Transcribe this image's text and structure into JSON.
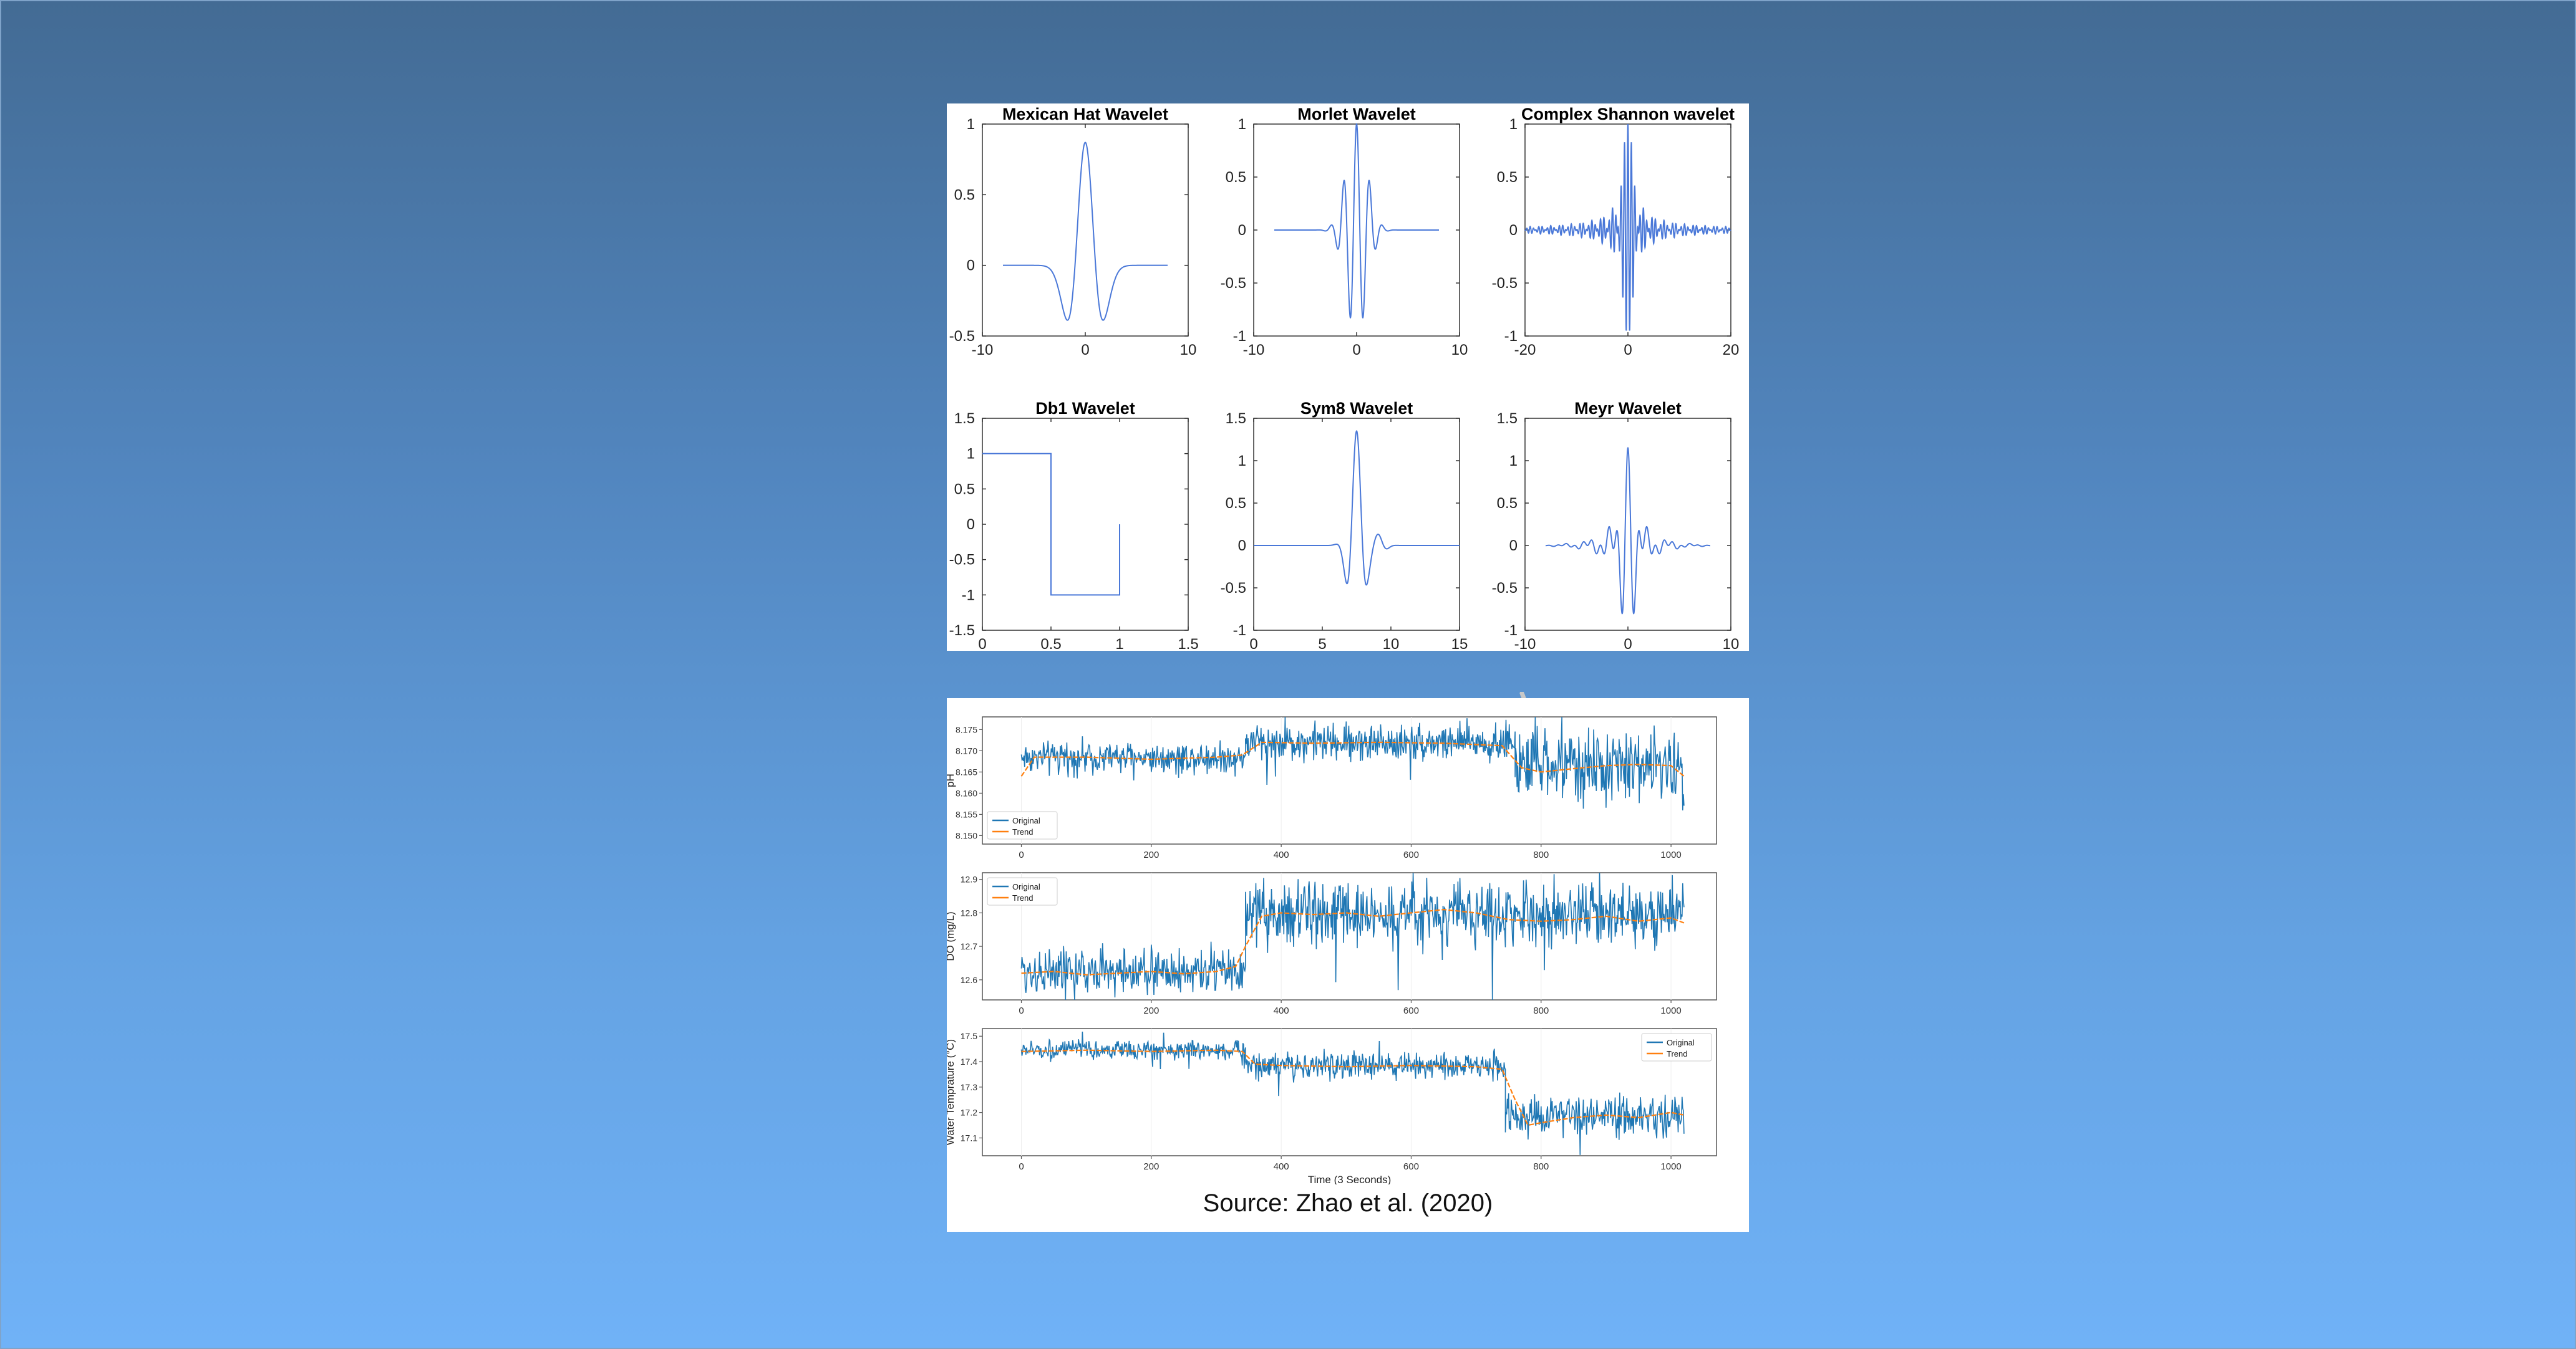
{
  "slide": {
    "caption": "Source: Zhao et al. (2020)",
    "colors": {
      "background_top": "#436b94",
      "background_bottom": "#70b2f7",
      "wavelet_line": "#4a78d8",
      "original": "#1f77b4",
      "trend": "#ff7f0e"
    }
  },
  "chart_data": [
    {
      "type": "line",
      "title": "Mexican Hat Wavelet",
      "function": "mexican-hat",
      "x": [
        -8,
        8
      ],
      "xlim": [
        -10,
        10
      ],
      "ylim": [
        -0.5,
        1
      ],
      "xticks": [
        "-10",
        "0",
        "10"
      ],
      "yticks": [
        "-0.5",
        "0",
        "0.5",
        "1"
      ],
      "peak": 0.87,
      "min": -0.39
    },
    {
      "type": "line",
      "title": "Morlet Wavelet",
      "function": "morlet",
      "x": [
        -8,
        8
      ],
      "xlim": [
        -10,
        10
      ],
      "ylim": [
        -1,
        1
      ],
      "xticks": [
        "-10",
        "0",
        "10"
      ],
      "yticks": [
        "-1",
        "-0.5",
        "0",
        "0.5",
        "1"
      ],
      "peak": 1.0,
      "min": -0.85
    },
    {
      "type": "line",
      "title": "Complex Shannon wavelet",
      "function": "complex-shannon",
      "x": [
        -20,
        20
      ],
      "xlim": [
        -20,
        20
      ],
      "ylim": [
        -1,
        1
      ],
      "xticks": [
        "-20",
        "0",
        "20"
      ],
      "yticks": [
        "-1",
        "-0.5",
        "0",
        "0.5",
        "1"
      ],
      "peak": 1.0,
      "min": -0.82
    },
    {
      "type": "line",
      "title": "Db1 Wavelet",
      "function": "haar",
      "x": [
        0,
        0,
        0.5,
        0.5,
        1,
        1
      ],
      "y": [
        1,
        1,
        1,
        -1,
        -1,
        0
      ],
      "xlim": [
        0,
        1.5
      ],
      "ylim": [
        -1.5,
        1.5
      ],
      "xticks": [
        "0",
        "0.5",
        "1",
        "1.5"
      ],
      "yticks": [
        "-1.5",
        "-1",
        "-0.5",
        "0",
        "0.5",
        "1",
        "1.5"
      ]
    },
    {
      "type": "line",
      "title": "Sym8 Wavelet",
      "function": "sym8",
      "x": [
        0,
        15
      ],
      "xlim": [
        0,
        15
      ],
      "ylim": [
        -1,
        1.5
      ],
      "xticks": [
        "0",
        "5",
        "10",
        "15"
      ],
      "yticks": [
        "-1",
        "-0.5",
        "0",
        "0.5",
        "1",
        "1.5"
      ],
      "peak": 1.35,
      "min": -0.85
    },
    {
      "type": "line",
      "title": "Meyr Wavelet",
      "function": "meyer",
      "x": [
        -8,
        8
      ],
      "xlim": [
        -10,
        10
      ],
      "ylim": [
        -1,
        1.5
      ],
      "xticks": [
        "-10",
        "0",
        "10"
      ],
      "yticks": [
        "-1",
        "-0.5",
        "0",
        "0.5",
        "1",
        "1.5"
      ],
      "peak": 1.15,
      "min": -0.85
    },
    {
      "type": "line",
      "ylabel": "pH",
      "xlim": [
        -60,
        1070
      ],
      "ylim": [
        8.148,
        8.178
      ],
      "xticks": [
        "0",
        "200",
        "400",
        "600",
        "800",
        "1000"
      ],
      "yticks": [
        "8.150",
        "8.155",
        "8.160",
        "8.165",
        "8.170",
        "8.175"
      ],
      "legend": "bottom-left",
      "series": [
        {
          "name": "Original",
          "segments": [
            {
              "x": [
                0,
                345
              ],
              "level": 8.1685,
              "noise": 0.0018
            },
            {
              "x": [
                345,
                760
              ],
              "level": 8.172,
              "noise": 0.0022
            },
            {
              "x": [
                760,
                1020
              ],
              "level": 8.1665,
              "noise": 0.004
            }
          ]
        },
        {
          "name": "Trend",
          "x": [
            0,
            20,
            100,
            200,
            300,
            340,
            370,
            450,
            550,
            650,
            740,
            770,
            800,
            850,
            900,
            950,
            1000,
            1020
          ],
          "y": [
            8.164,
            8.1685,
            8.1685,
            8.168,
            8.1685,
            8.169,
            8.172,
            8.1718,
            8.172,
            8.1718,
            8.1712,
            8.166,
            8.165,
            8.1658,
            8.1665,
            8.1668,
            8.1665,
            8.164
          ]
        }
      ]
    },
    {
      "type": "line",
      "ylabel": "DO (mg/L)",
      "xlim": [
        -60,
        1070
      ],
      "ylim": [
        12.54,
        12.92
      ],
      "xticks": [
        "0",
        "200",
        "400",
        "600",
        "800",
        "1000"
      ],
      "yticks": [
        "12.6",
        "12.7",
        "12.8",
        "12.9"
      ],
      "legend": "top-left",
      "series": [
        {
          "name": "Original",
          "segments": [
            {
              "x": [
                0,
                345
              ],
              "level": 12.625,
              "noise": 0.035
            },
            {
              "x": [
                345,
                1020
              ],
              "level": 12.795,
              "noise": 0.045
            }
          ]
        },
        {
          "name": "Trend",
          "x": [
            0,
            50,
            100,
            150,
            200,
            250,
            300,
            330,
            345,
            370,
            400,
            450,
            500,
            550,
            600,
            650,
            700,
            750,
            800,
            850,
            900,
            950,
            1000,
            1020
          ],
          "y": [
            12.62,
            12.625,
            12.615,
            12.62,
            12.625,
            12.618,
            12.625,
            12.64,
            12.7,
            12.79,
            12.8,
            12.795,
            12.8,
            12.79,
            12.8,
            12.81,
            12.8,
            12.78,
            12.775,
            12.78,
            12.79,
            12.775,
            12.785,
            12.77
          ]
        }
      ]
    },
    {
      "type": "line",
      "ylabel": "Water Temprature (°C)",
      "xlabel": "Time (3 Seconds)",
      "xlim": [
        -60,
        1070
      ],
      "ylim": [
        17.03,
        17.53
      ],
      "xticks": [
        "0",
        "200",
        "400",
        "600",
        "800",
        "1000"
      ],
      "yticks": [
        "17.1",
        "17.2",
        "17.3",
        "17.4",
        "17.5"
      ],
      "legend": "top-right",
      "series": [
        {
          "name": "Original",
          "segments": [
            {
              "x": [
                0,
                345
              ],
              "level": 17.445,
              "noise": 0.018
            },
            {
              "x": [
                345,
                745
              ],
              "level": 17.385,
              "noise": 0.025
            },
            {
              "x": [
                745,
                1020
              ],
              "level": 17.18,
              "noise": 0.04
            }
          ]
        },
        {
          "name": "Trend",
          "x": [
            0,
            100,
            200,
            300,
            340,
            360,
            400,
            500,
            600,
            700,
            740,
            760,
            780,
            800,
            850,
            900,
            950,
            1000,
            1020
          ],
          "y": [
            17.44,
            17.445,
            17.44,
            17.445,
            17.44,
            17.39,
            17.385,
            17.38,
            17.385,
            17.38,
            17.37,
            17.25,
            17.15,
            17.16,
            17.18,
            17.19,
            17.18,
            17.2,
            17.19
          ]
        }
      ]
    }
  ]
}
